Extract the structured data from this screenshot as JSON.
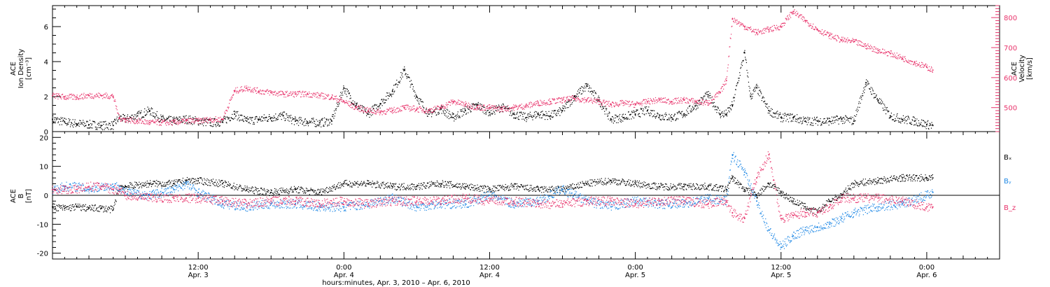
{
  "colors": {
    "density": "#000000",
    "velocity": "#e8336b",
    "bx": "#000000",
    "by": "#1f88e5",
    "bz": "#e8336b",
    "axis": "#000000"
  },
  "panels": {
    "top": {
      "left_label_lines": [
        "ACE",
        "Ion Density",
        "[cm⁻³]"
      ],
      "right_label_lines": [
        "ACE",
        "Velocity",
        "[km/s]"
      ]
    },
    "bottom": {
      "left_label_lines": [
        "ACE",
        "B",
        "[nT]"
      ],
      "legend": [
        "Bₓ",
        "Bᵧ",
        "B_z"
      ]
    }
  },
  "x_axis": {
    "ticks": [
      {
        "hour": 12,
        "time": "12:00",
        "day": "Apr. 3"
      },
      {
        "hour": 24,
        "time": "0:00",
        "day": "Apr. 4"
      },
      {
        "hour": 36,
        "time": "12:00",
        "day": "Apr. 4"
      },
      {
        "hour": 48,
        "time": "0:00",
        "day": "Apr. 5"
      },
      {
        "hour": 60,
        "time": "12:00",
        "day": "Apr. 5"
      },
      {
        "hour": 72,
        "time": "0:00",
        "day": "Apr. 6"
      }
    ],
    "title": "hours:minutes, Apr.  3, 2010 – Apr.  6, 2010"
  },
  "chart_data": [
    {
      "type": "scatter",
      "panel": "top",
      "x_unit": "hours since Apr. 3 00:00",
      "xlim": [
        0,
        78
      ],
      "ylim_left": [
        0,
        7.2
      ],
      "ylim_right": [
        420,
        840
      ],
      "yticks_left": [
        0,
        2,
        4,
        6
      ],
      "yticks_right": [
        500,
        600,
        700,
        800
      ],
      "series": [
        {
          "name": "Ion Density",
          "axis": "left",
          "x": [
            0,
            1,
            2,
            3,
            4,
            5,
            5.5,
            6,
            7,
            8,
            9,
            10,
            11,
            12,
            13,
            14,
            15,
            16,
            17,
            18,
            19,
            20,
            21,
            22,
            23,
            24,
            25,
            26,
            27,
            28,
            29,
            30,
            31,
            32,
            33,
            34,
            35,
            36,
            37,
            38,
            39,
            40,
            41,
            42,
            43,
            44,
            45,
            46,
            47,
            48,
            49,
            50,
            51,
            52,
            53,
            54,
            55,
            55.5,
            56,
            57,
            57.5,
            58,
            59,
            60,
            61,
            62,
            63,
            64,
            65,
            66,
            67,
            68,
            69,
            70,
            71,
            72,
            72.5
          ],
          "y": [
            0.7,
            0.55,
            0.45,
            0.4,
            0.35,
            0.35,
            0.8,
            0.7,
            0.9,
            1.2,
            0.7,
            0.6,
            0.7,
            0.6,
            0.5,
            0.55,
            1.0,
            0.6,
            0.7,
            0.8,
            0.9,
            0.6,
            0.55,
            0.5,
            0.6,
            2.5,
            1.5,
            1.0,
            1.6,
            2.3,
            3.5,
            2.0,
            1.0,
            1.3,
            0.8,
            1.2,
            1.5,
            1.1,
            1.4,
            1.0,
            0.8,
            1.0,
            0.9,
            1.2,
            2.0,
            2.6,
            1.8,
            0.7,
            0.8,
            1.0,
            1.2,
            0.9,
            0.8,
            1.0,
            1.5,
            2.1,
            1.0,
            1.0,
            1.5,
            4.5,
            2.0,
            2.5,
            1.2,
            0.8,
            0.8,
            0.6,
            0.6,
            0.6,
            0.7,
            0.6,
            2.8,
            1.8,
            0.9,
            0.7,
            0.6,
            0.4,
            0.35
          ]
        },
        {
          "name": "Velocity",
          "axis": "right",
          "x": [
            0,
            1,
            2,
            3,
            4,
            5,
            5.5,
            6,
            7,
            8,
            9,
            10,
            11,
            12,
            13,
            14,
            15,
            16,
            17,
            18,
            19,
            20,
            21,
            22,
            23,
            24,
            25,
            26,
            27,
            28,
            29,
            30,
            31,
            32,
            33,
            34,
            35,
            36,
            37,
            38,
            39,
            40,
            41,
            42,
            43,
            44,
            45,
            46,
            47,
            48,
            49,
            50,
            51,
            52,
            53,
            54,
            55,
            55.5,
            56,
            57,
            58,
            59,
            60,
            61,
            62,
            63,
            64,
            65,
            66,
            67,
            68,
            69,
            70,
            71,
            72,
            72.5
          ],
          "y": [
            540,
            535,
            535,
            540,
            540,
            538,
            465,
            460,
            455,
            450,
            450,
            450,
            455,
            455,
            460,
            460,
            555,
            565,
            555,
            550,
            545,
            545,
            545,
            540,
            535,
            520,
            500,
            490,
            485,
            490,
            500,
            495,
            490,
            500,
            520,
            510,
            500,
            500,
            495,
            500,
            505,
            515,
            520,
            525,
            530,
            525,
            520,
            510,
            515,
            510,
            520,
            525,
            520,
            525,
            520,
            515,
            550,
            590,
            795,
            770,
            750,
            760,
            770,
            820,
            790,
            760,
            740,
            725,
            720,
            705,
            690,
            680,
            665,
            650,
            635,
            625
          ]
        }
      ]
    },
    {
      "type": "scatter",
      "panel": "bottom",
      "x_unit": "hours since Apr. 3 00:00",
      "xlim": [
        0,
        78
      ],
      "ylim": [
        -22,
        22
      ],
      "yticks": [
        -20,
        -10,
        0,
        10,
        20
      ],
      "series": [
        {
          "name": "Bₓ",
          "x": [
            0,
            1,
            2,
            3,
            4,
            5,
            5.5,
            6,
            8,
            10,
            11,
            12,
            14,
            16,
            18,
            20,
            22,
            24,
            26,
            28,
            30,
            32,
            34,
            36,
            38,
            40,
            42,
            44,
            46,
            48,
            50,
            52,
            54,
            55.5,
            56,
            57,
            58,
            59,
            60,
            61,
            62,
            63,
            64,
            65,
            66,
            68,
            70,
            72,
            72.5
          ],
          "y": [
            -4,
            -4.5,
            -4,
            -4.5,
            -4.5,
            -5,
            3,
            3,
            4,
            4,
            5,
            5,
            4,
            2,
            1,
            2,
            1,
            4,
            4,
            3,
            3,
            4,
            3,
            2,
            3,
            2,
            2,
            4,
            5,
            4,
            3,
            3,
            3,
            2,
            6,
            2,
            0,
            4,
            1,
            -2,
            -4,
            -6,
            -2,
            0,
            4,
            5,
            6,
            6,
            6
          ]
        },
        {
          "name": "Bᵧ",
          "x": [
            0,
            1,
            2,
            3,
            4,
            5,
            5.5,
            6,
            8,
            10,
            11,
            12,
            14,
            16,
            18,
            20,
            22,
            24,
            26,
            28,
            30,
            32,
            34,
            36,
            38,
            40,
            42,
            44,
            46,
            48,
            50,
            52,
            54,
            55.5,
            56,
            57,
            58,
            59,
            60,
            61,
            62,
            63,
            64,
            65,
            66,
            68,
            70,
            72,
            72.5
          ],
          "y": [
            2,
            3,
            3,
            2,
            3,
            3,
            3,
            1,
            0,
            2,
            4,
            1,
            -3,
            -4,
            -3,
            -3,
            -4,
            -4,
            -3,
            -1,
            -4,
            -3,
            -3,
            0,
            -3,
            -2,
            2,
            -2,
            -4,
            -2,
            -3,
            -3,
            -1,
            -2,
            14,
            8,
            -2,
            -12,
            -18,
            -14,
            -12,
            -11,
            -10,
            -8,
            -6,
            -4,
            -3,
            0,
            1
          ]
        },
        {
          "name": "B_z",
          "x": [
            0,
            1,
            2,
            3,
            4,
            5,
            5.5,
            6,
            8,
            10,
            11,
            12,
            14,
            16,
            18,
            20,
            22,
            24,
            26,
            28,
            30,
            32,
            34,
            36,
            38,
            40,
            42,
            44,
            46,
            48,
            50,
            52,
            54,
            55.5,
            56,
            57,
            58,
            59,
            60,
            61,
            62,
            63,
            64,
            65,
            66,
            68,
            70,
            72,
            72.5
          ],
          "y": [
            2,
            2,
            2,
            3,
            3,
            2,
            2,
            0,
            -1,
            -1,
            -1,
            -1,
            -2,
            -3,
            -2,
            -2,
            -3,
            -2,
            -3,
            -2,
            -2,
            -2,
            -1,
            -2,
            -2,
            -3,
            -3,
            -2,
            -2,
            -3,
            -2,
            -2,
            -3,
            -2,
            -6,
            -8,
            6,
            14,
            -8,
            -7,
            -6,
            -6,
            -4,
            -1,
            -1,
            -1,
            -2,
            -4,
            -4
          ]
        }
      ]
    }
  ]
}
